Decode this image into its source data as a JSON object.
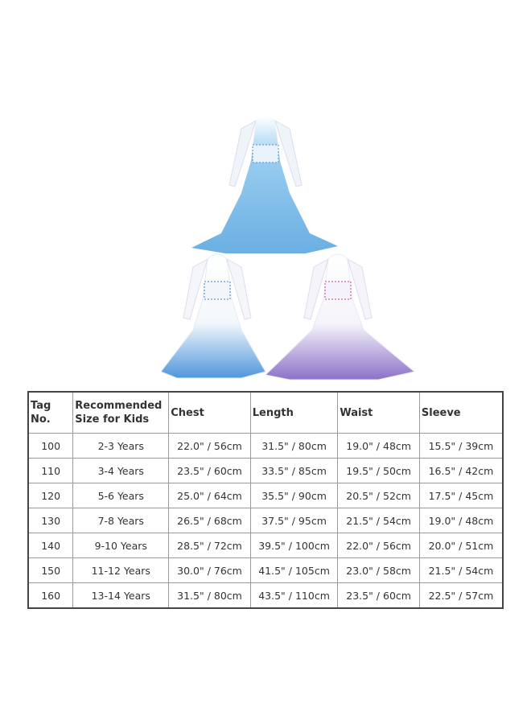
{
  "product_images": [
    {
      "name": "blue-dress",
      "colors": [
        "#ffffff",
        "#8ec8ee",
        "#5aa6e0"
      ]
    },
    {
      "name": "white-blue-dress",
      "colors": [
        "#ffffff",
        "#a8d2f0",
        "#4f96dc"
      ]
    },
    {
      "name": "white-purple-dress",
      "colors": [
        "#ffffff",
        "#cfc3ea",
        "#8b72c8"
      ]
    }
  ],
  "size_chart": {
    "headers": [
      "Tag No.",
      "Recommended Size for Kids",
      "Chest",
      "Length",
      "Waist",
      "Sleeve"
    ],
    "rows": [
      [
        "100",
        "2-3 Years",
        "22.0\" / 56cm",
        "31.5\" / 80cm",
        "19.0\" / 48cm",
        "15.5\" / 39cm"
      ],
      [
        "110",
        "3-4 Years",
        "23.5\" / 60cm",
        "33.5\" / 85cm",
        "19.5\" / 50cm",
        "16.5\" / 42cm"
      ],
      [
        "120",
        "5-6 Years",
        "25.0\" / 64cm",
        "35.5\" / 90cm",
        "20.5\" / 52cm",
        "17.5\" / 45cm"
      ],
      [
        "130",
        "7-8 Years",
        "26.5\" / 68cm",
        "37.5\" / 95cm",
        "21.5\" / 54cm",
        "19.0\" / 48cm"
      ],
      [
        "140",
        "9-10 Years",
        "28.5\" / 72cm",
        "39.5\" / 100cm",
        "22.0\" / 56cm",
        "20.0\" / 51cm"
      ],
      [
        "150",
        "11-12 Years",
        "30.0\" / 76cm",
        "41.5\" / 105cm",
        "23.0\" / 58cm",
        "21.5\" / 54cm"
      ],
      [
        "160",
        "13-14 Years",
        "31.5\" / 80cm",
        "43.5\" / 110cm",
        "23.5\" / 60cm",
        "22.5\" / 57cm"
      ]
    ]
  }
}
